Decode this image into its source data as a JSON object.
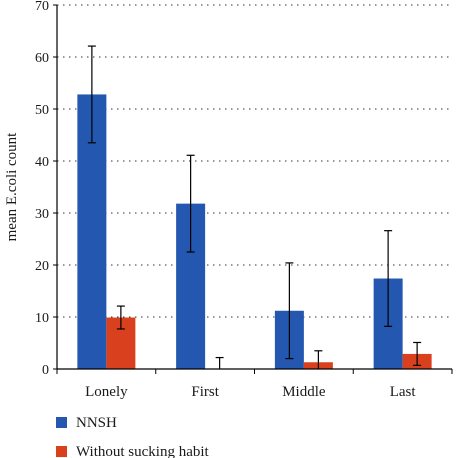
{
  "chart_data": {
    "type": "bar",
    "categories": [
      "Lonely",
      "First",
      "Middle",
      "Last"
    ],
    "series": [
      {
        "name": "NNSH",
        "color": "#2457b0",
        "values": [
          52.8,
          31.8,
          11.2,
          17.4
        ],
        "errors": [
          9.3,
          9.3,
          9.2,
          9.2
        ]
      },
      {
        "name": "Without sucking habit",
        "color": "#d9411e",
        "values": [
          9.9,
          0,
          1.3,
          2.9
        ],
        "errors": [
          2.2,
          2.2,
          2.2,
          2.2
        ]
      }
    ],
    "ylabel": "mean E.coli count",
    "ylim": [
      0,
      70
    ],
    "yticks": [
      0,
      10,
      20,
      30,
      40,
      50,
      60,
      70
    ],
    "grid": "dotted horizontal",
    "legend": "bottom-left"
  }
}
